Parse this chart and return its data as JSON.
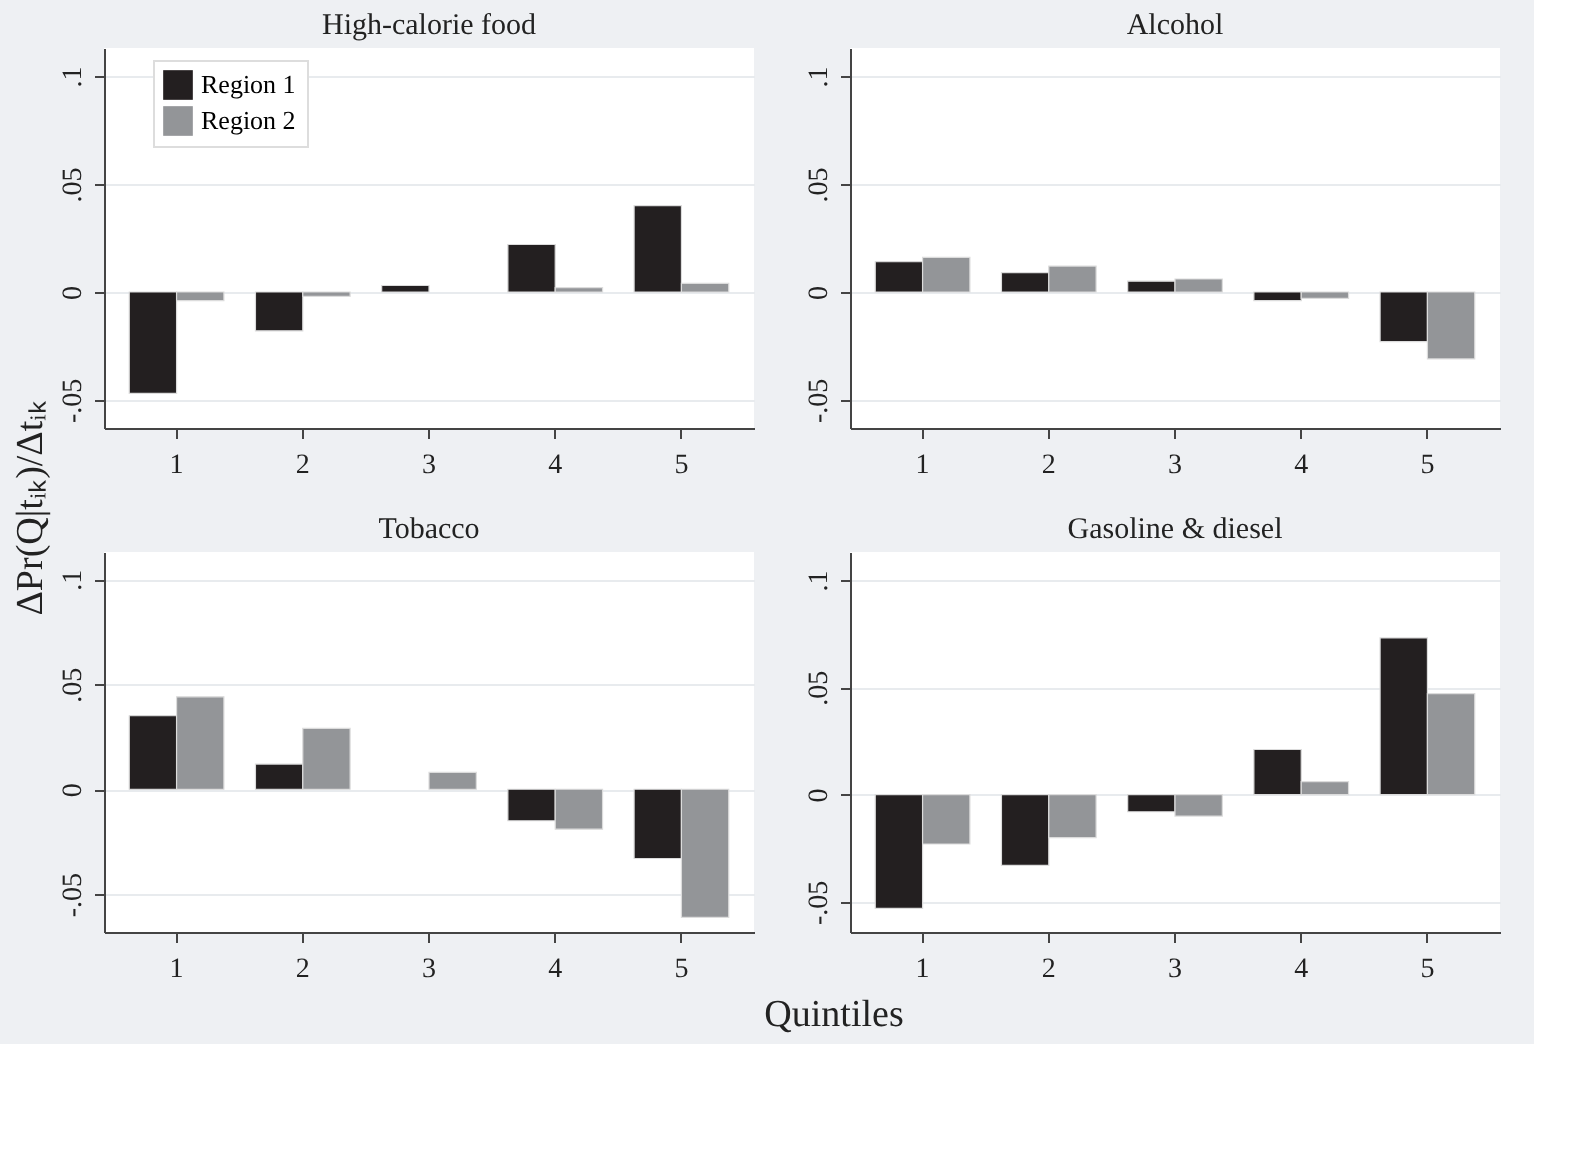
{
  "chart_data": [
    {
      "type": "bar",
      "title": "High-calorie food",
      "ylabel": "ΔPr(Q|tᵢₖ)/Δtᵢₖ",
      "xlabel": "Quintiles",
      "categories": [
        "1",
        "2",
        "3",
        "4",
        "5"
      ],
      "ylim": [
        -0.063,
        0.113
      ],
      "yticks": [
        {
          "value": -0.05,
          "label": "-.05"
        },
        0,
        {
          "value": 0.05,
          "label": ".05"
        },
        {
          "value": 0.1,
          "label": ".1"
        }
      ],
      "grid": "y",
      "legend": "top left",
      "series": [
        {
          "name": "Region 1",
          "color": "#231f20",
          "values": [
            -0.047,
            -0.018,
            0.003,
            0.022,
            0.04
          ]
        },
        {
          "name": "Region 2",
          "color": "#939598",
          "values": [
            -0.004,
            -0.002,
            null,
            0.002,
            0.004
          ]
        }
      ]
    },
    {
      "type": "bar",
      "title": "Alcohol",
      "categories": [
        "1",
        "2",
        "3",
        "4",
        "5"
      ],
      "ylim": [
        -0.063,
        0.113
      ],
      "yticks": [
        {
          "value": -0.05,
          "label": "-.05"
        },
        0,
        {
          "value": 0.05,
          "label": ".05"
        },
        {
          "value": 0.1,
          "label": ".1"
        }
      ],
      "grid": "y",
      "series": [
        {
          "color": "#231f20",
          "values": [
            0.014,
            0.009,
            0.005,
            -0.004,
            -0.023
          ]
        },
        {
          "color": "#939598",
          "values": [
            0.016,
            0.012,
            0.006,
            -0.003,
            -0.031
          ]
        }
      ]
    },
    {
      "type": "bar",
      "title": "Tobacco",
      "categories": [
        "1",
        "2",
        "3",
        "4",
        "5"
      ],
      "ylim": [
        -0.068,
        0.113
      ],
      "yticks": [
        {
          "value": -0.05,
          "label": "-.05"
        },
        0,
        {
          "value": 0.05,
          "label": ".05"
        },
        {
          "value": 0.1,
          "label": ".1"
        }
      ],
      "grid": "y",
      "series": [
        {
          "color": "#231f20",
          "values": [
            0.035,
            0.012,
            null,
            -0.015,
            -0.033
          ]
        },
        {
          "color": "#939598",
          "values": [
            0.044,
            0.029,
            0.008,
            -0.019,
            -0.061
          ]
        }
      ]
    },
    {
      "type": "bar",
      "title": "Gasoline & diesel",
      "categories": [
        "1",
        "2",
        "3",
        "4",
        "5"
      ],
      "ylim": [
        -0.064,
        0.113
      ],
      "yticks": [
        {
          "value": -0.05,
          "label": "-.05"
        },
        0,
        {
          "value": 0.05,
          "label": ".05"
        },
        {
          "value": 0.1,
          "label": ".1"
        }
      ],
      "grid": "y",
      "series": [
        {
          "color": "#231f20",
          "values": [
            -0.053,
            -0.033,
            -0.008,
            0.021,
            0.073
          ]
        },
        {
          "color": "#939598",
          "values": [
            -0.023,
            -0.02,
            -0.01,
            0.006,
            0.047
          ]
        }
      ]
    }
  ]
}
